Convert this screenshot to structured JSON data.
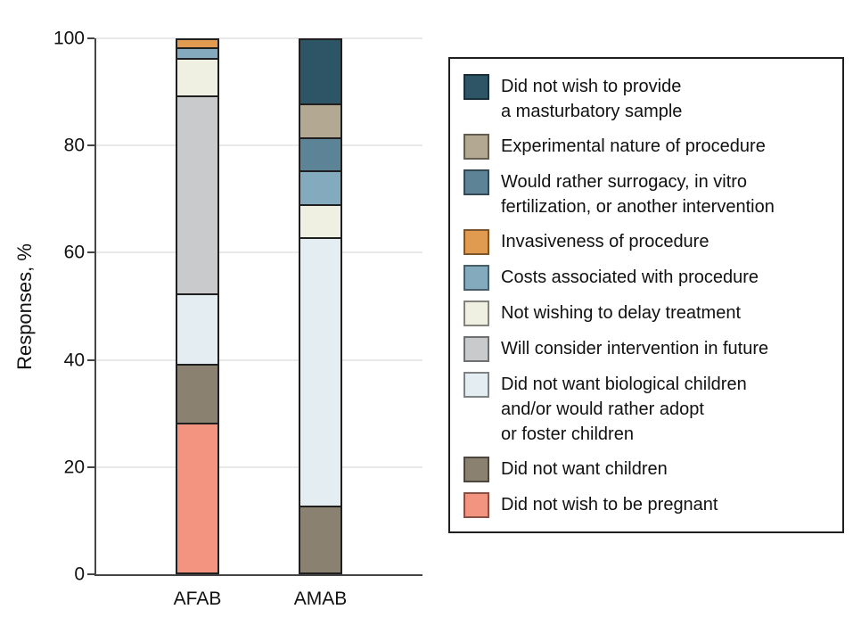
{
  "chart_data": {
    "type": "bar",
    "stacked": true,
    "title": "",
    "xlabel": "",
    "ylabel": "Responses, %",
    "ylim": [
      0,
      100
    ],
    "yticks": [
      0,
      20,
      40,
      60,
      80,
      100
    ],
    "grid": true,
    "legend_position": "right",
    "categories": [
      "AFAB",
      "AMAB"
    ],
    "series": [
      {
        "name": "Did not wish to provide a masturbatory sample",
        "color": "#2e5565",
        "values": [
          0,
          12.5
        ]
      },
      {
        "name": "Experimental nature of procedure",
        "color": "#b3a993",
        "values": [
          0,
          6.25
        ]
      },
      {
        "name": "Would rather surrogacy, in vitro fertilization, or another intervention",
        "color": "#5d8396",
        "values": [
          0,
          6.25
        ]
      },
      {
        "name": "Invasiveness of procedure",
        "color": "#e09b51",
        "values": [
          2,
          0
        ]
      },
      {
        "name": "Costs associated with procedure",
        "color": "#84abbd",
        "values": [
          2,
          6.25
        ]
      },
      {
        "name": "Not wishing to delay treatment",
        "color": "#efefe2",
        "values": [
          7,
          6.25
        ]
      },
      {
        "name": "Will consider intervention in future",
        "color": "#c8cacc",
        "values": [
          37,
          0
        ]
      },
      {
        "name": "Did not want biological children and/or would rather adopt or foster children",
        "color": "#e4edf2",
        "values": [
          13,
          50
        ]
      },
      {
        "name": "Did not want children",
        "color": "#8b8171",
        "values": [
          11,
          12.5
        ]
      },
      {
        "name": "Did not wish to be pregnant",
        "color": "#f2947f",
        "values": [
          28,
          0
        ]
      }
    ]
  },
  "legend": {
    "items": [
      {
        "lines": [
          "Did not wish to provide",
          "a masturbatory sample"
        ]
      },
      {
        "lines": [
          "Experimental nature of procedure"
        ]
      },
      {
        "lines": [
          "Would rather surrogacy, in vitro",
          "fertilization, or another intervention"
        ]
      },
      {
        "lines": [
          "Invasiveness of procedure"
        ]
      },
      {
        "lines": [
          "Costs associated with procedure"
        ]
      },
      {
        "lines": [
          "Not wishing to delay treatment"
        ]
      },
      {
        "lines": [
          "Will consider intervention in future"
        ]
      },
      {
        "lines": [
          "Did not want biological children",
          "and/or would rather adopt",
          "or foster children"
        ]
      },
      {
        "lines": [
          "Did not want children"
        ]
      },
      {
        "lines": [
          "Did not wish to be pregnant"
        ]
      }
    ]
  }
}
